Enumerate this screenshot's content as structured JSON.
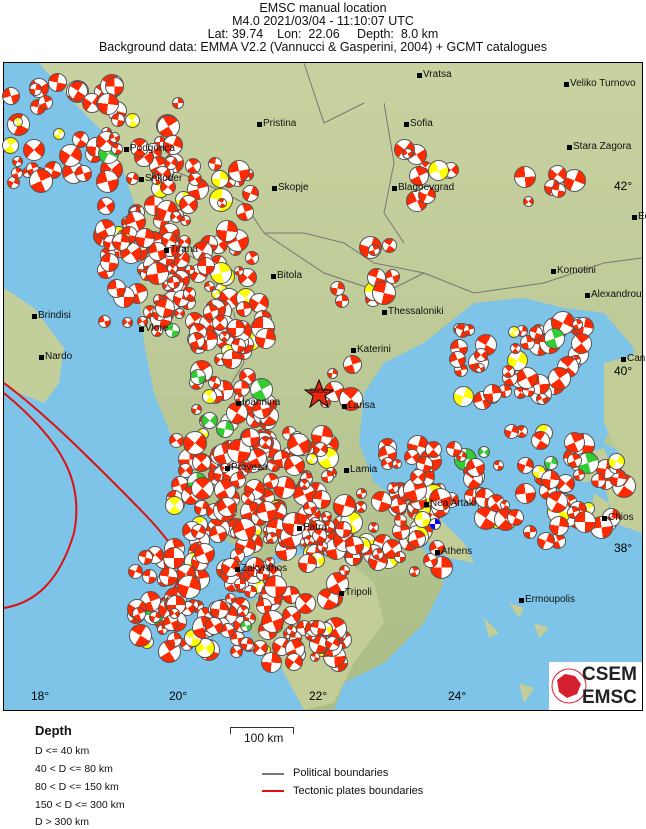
{
  "header": {
    "title": "EMSC manual location",
    "event": "M4.0  2021/03/04 - 11:10:07 UTC",
    "location": "Lat: 39.74    Lon:  22.06     Depth:  8.0 km",
    "background": "Background data: EMMA V2.2 (Vannucci & Gasperini, 2004) + GCMT catalogues"
  },
  "map": {
    "epicenter_label": "EMSC",
    "lon_labels": [
      "18°",
      "20°",
      "22°",
      "24°"
    ],
    "lat_labels": [
      "42°",
      "40°",
      "38°"
    ],
    "cities": [
      "Vratsa",
      "Veliko Turnovo",
      "Pristina",
      "Sofia",
      "Stara Zagora",
      "Podgorica",
      "Shkoder",
      "Skopje",
      "Blagoevgrad",
      "Tirana",
      "Komotini",
      "Bitola",
      "Alexandrou",
      "Brindisi",
      "Thessaloniki",
      "Vlore",
      "Katerini",
      "Nardo",
      "Can",
      "Ioannina",
      "Larisa",
      "Preveza",
      "Lamia",
      "Nea Artaki",
      "Chios",
      "Patra",
      "Athens",
      "Zakynthos",
      "Tripoli",
      "Ermoupolis",
      "Ed"
    ],
    "logo": {
      "top": "CSEM",
      "bottom": "EMSC"
    },
    "colors": {
      "shallow": "#ff2a00",
      "intermediate": "#ffff00",
      "deeper": "#33cc33",
      "deep": "#0000ff",
      "tectonic": "#dd1111",
      "political": "#777777",
      "sea": "#7ec3e8",
      "land": "#c9d6a4"
    }
  },
  "legend": {
    "depth_title": "Depth",
    "depth_items": [
      "D <= 40 km",
      "40 < D <= 80 km",
      "80 < D <= 150 km",
      "150 < D <= 300 km",
      "D > 300 km"
    ],
    "scale": "100 km",
    "lines": [
      "Political boundaries",
      "Tectonic plates boundaries"
    ]
  }
}
